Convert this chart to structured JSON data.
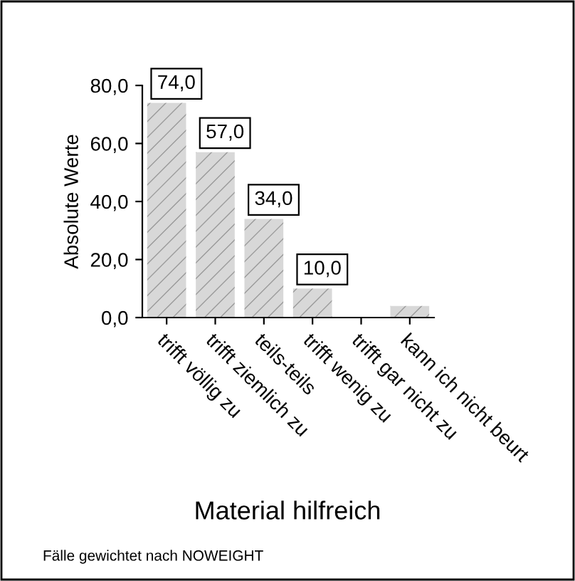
{
  "chart_data": {
    "type": "bar",
    "title": "Material hilfreich",
    "ylabel": "Absolute Werte",
    "categories": [
      "trifft völlig zu",
      "trifft ziemlich zu",
      "teils-teils",
      "trifft wenig zu",
      "trifft gar nicht zu",
      "kann ich nicht beurt"
    ],
    "values": [
      74,
      57,
      34,
      10,
      0,
      4
    ],
    "value_labels": [
      "74,0",
      "57,0",
      "34,0",
      "10,0",
      null,
      null
    ],
    "color": "#d8d8d8",
    "ylim": [
      0,
      80
    ],
    "yticks": [
      {
        "value": 0,
        "label": "0,0"
      },
      {
        "value": 20,
        "label": "20,0"
      },
      {
        "value": 40,
        "label": "40,0"
      },
      {
        "value": 60,
        "label": "60,0"
      },
      {
        "value": 80,
        "label": "80,0"
      }
    ],
    "annotations": [
      "Fälle gewichtet nach NOWEIGHT"
    ],
    "grid": false
  }
}
